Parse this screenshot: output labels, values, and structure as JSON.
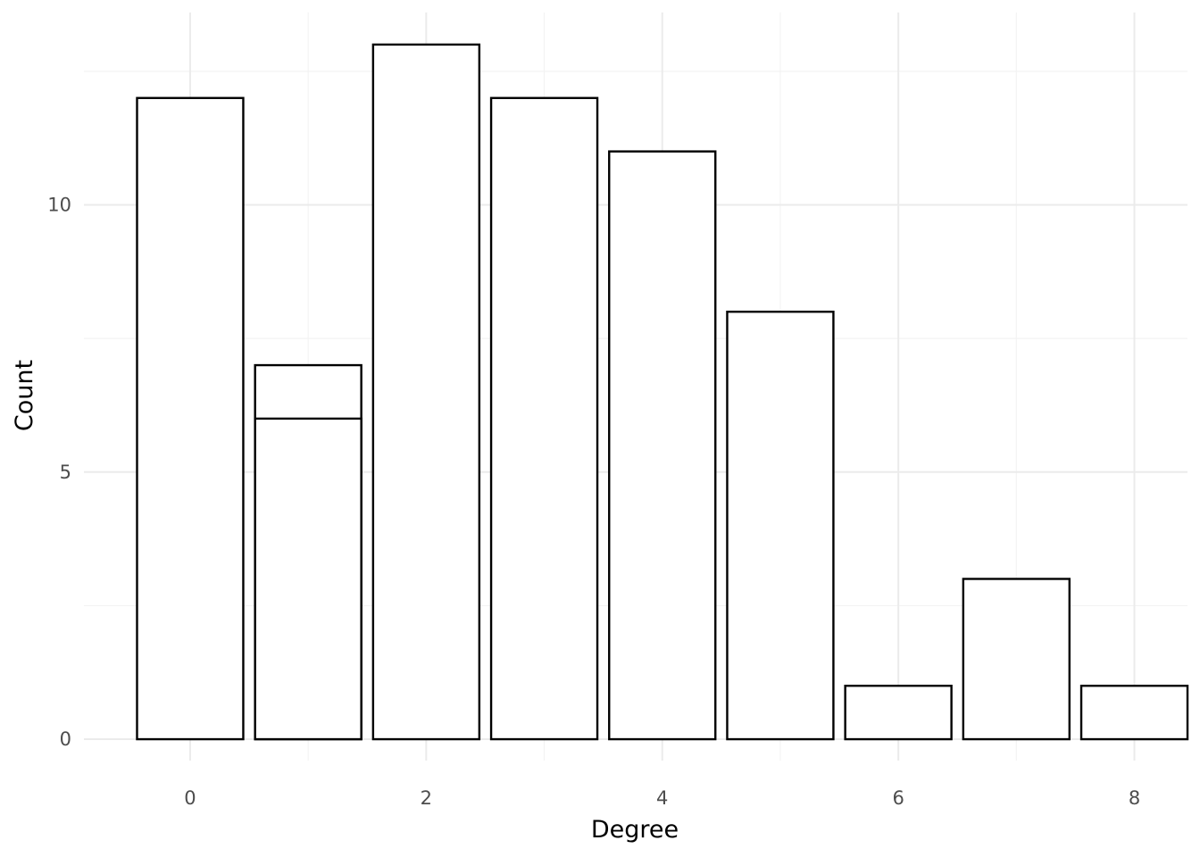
{
  "chart_data": {
    "type": "bar",
    "title": "",
    "xlabel": "Degree",
    "ylabel": "Count",
    "x_ticks": [
      0,
      2,
      4,
      6,
      8
    ],
    "y_ticks": [
      0,
      5,
      10
    ],
    "xlim": [
      -0.9,
      8.45
    ],
    "ylim": [
      -0.4,
      13.6
    ],
    "grid": true,
    "legend": "none",
    "bars": [
      {
        "x": 0,
        "y": 12
      },
      {
        "x": 1,
        "y": 6
      },
      {
        "x": 1,
        "y": 7
      },
      {
        "x": 2,
        "y": 13
      },
      {
        "x": 3,
        "y": 12
      },
      {
        "x": 4,
        "y": 11
      },
      {
        "x": 5,
        "y": 8
      },
      {
        "x": 6,
        "y": 1
      },
      {
        "x": 7,
        "y": 3
      },
      {
        "x": 8,
        "y": 1
      }
    ],
    "bar_width": 0.9
  }
}
